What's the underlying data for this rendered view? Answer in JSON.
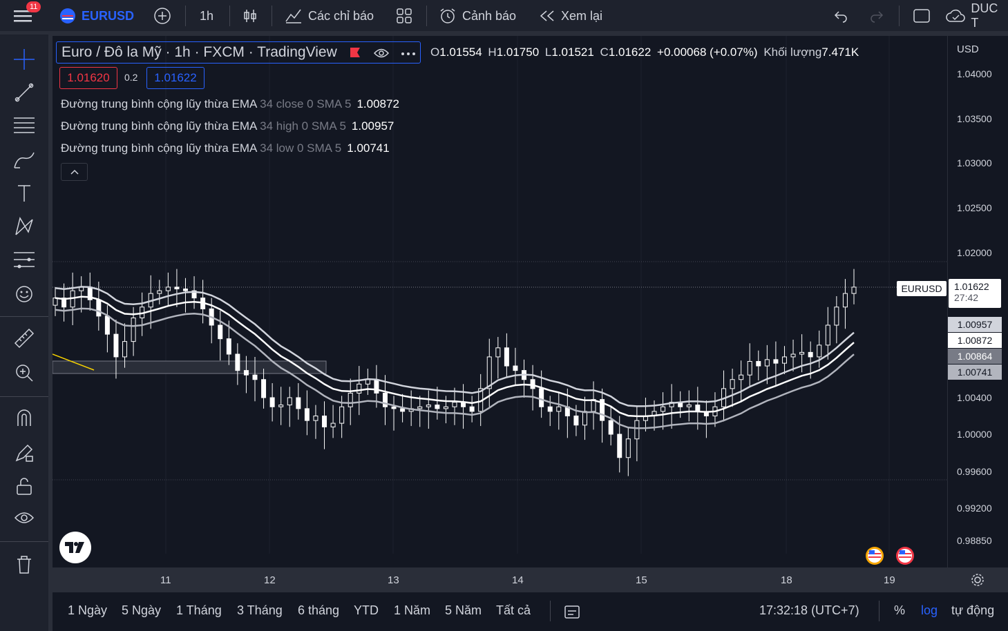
{
  "topbar": {
    "menu_badge": "11",
    "symbol": "EURUSD",
    "interval": "1h",
    "indicators_label": "Các chỉ báo",
    "alerts_label": "Cảnh báo",
    "replay_label": "Xem lại",
    "account_label": "DUC T"
  },
  "legend": {
    "title": "Euro / Đô la Mỹ · 1h · FXCM · TradingView",
    "ohlc": {
      "o_label": "O",
      "o": "1.01554",
      "h_label": "H",
      "h": "1.01750",
      "l_label": "L",
      "l": "1.01521",
      "c_label": "C",
      "c": "1.01622",
      "change": "+0.00068 (+0.07%)",
      "vol_label": "Khối lượng",
      "vol": "7.471K"
    },
    "sell_price": "1.01620",
    "spread": "0.2",
    "buy_price": "1.01622",
    "indicators": [
      {
        "name": "Đường trung bình cộng lũy thừa EMA",
        "params": "34 close 0 SMA 5",
        "value": "1.00872"
      },
      {
        "name": "Đường trung bình cộng lũy thừa EMA",
        "params": "34 high 0 SMA 5",
        "value": "1.00957"
      },
      {
        "name": "Đường trung bình cộng lũy thừa EMA",
        "params": "34 low 0 SMA 5",
        "value": "1.00741"
      }
    ]
  },
  "price_axis": {
    "currency": "USD",
    "ticks": [
      "1.04000",
      "1.03500",
      "1.03000",
      "1.02500",
      "1.02000",
      "1.00400",
      "1.00000",
      "0.99600",
      "0.99200",
      "0.98850"
    ],
    "symbol_tag": "EURUSD",
    "current_price": "1.01622",
    "countdown": "27:42",
    "ema_high_label": "1.00957",
    "ema_close_label": "1.00872",
    "extra_label": "1.00864",
    "ema_low_label": "1.00741"
  },
  "time_axis": {
    "ticks": [
      "11",
      "12",
      "13",
      "14",
      "15",
      "18",
      "19"
    ]
  },
  "bottombar": {
    "ranges": [
      "1 Ngày",
      "5 Ngày",
      "1 Tháng",
      "3 Tháng",
      "6 tháng",
      "YTD",
      "1 Năm",
      "5 Năm",
      "Tất cả"
    ],
    "clock": "17:32:18 (UTC+7)",
    "percent": "%",
    "log": "log",
    "auto": "tự động"
  },
  "colors": {
    "background": "#131722",
    "accent": "#2962ff",
    "up": "#ffffff",
    "down": "#ffffff",
    "ema_close": "#ffffff",
    "ema_band": "#b2b5be",
    "sell": "#f23645",
    "buy": "#2962ff"
  },
  "chart_data": {
    "type": "candlestick",
    "symbol": "EURUSD",
    "interval": "1h",
    "ylim": [
      0.9885,
      1.042
    ],
    "x_ticks": [
      "11",
      "12",
      "13",
      "14",
      "15",
      "18",
      "19"
    ],
    "closes": [
      1.015,
      1.014,
      1.0158,
      1.0162,
      1.0148,
      1.013,
      1.011,
      1.0085,
      1.0102,
      1.0128,
      1.014,
      1.0155,
      1.0158,
      1.0162,
      1.016,
      1.0158,
      1.015,
      1.0138,
      1.012,
      1.0105,
      1.0088,
      1.007,
      1.0065,
      1.006,
      1.004,
      1.003,
      1.0032,
      1.004,
      1.0028,
      1.0015,
      1.002,
      1.0008,
      1.0012,
      1.003,
      1.0045,
      1.0055,
      1.006,
      1.0045,
      1.003,
      1.0028,
      1.0025,
      1.0028,
      1.003,
      1.0032,
      1.0028,
      1.003,
      1.0035,
      1.003,
      1.0025,
      1.005,
      1.0085,
      1.0095,
      1.0075,
      1.007,
      1.006,
      1.005,
      1.003,
      1.0025,
      1.003,
      1.002,
      1.001,
      1.0025,
      1.0038,
      1.0015,
      1.0,
      0.9975,
      0.9995,
      1.0015,
      1.002,
      1.0025,
      1.003,
      1.0035,
      1.003,
      1.0032,
      1.0025,
      1.002,
      1.003,
      1.005,
      1.006,
      1.0065,
      1.008,
      1.0075,
      1.0082,
      1.0078,
      1.0085,
      1.0088,
      1.009,
      1.0085,
      1.0098,
      1.012,
      1.014,
      1.0155,
      1.0162
    ]
  }
}
